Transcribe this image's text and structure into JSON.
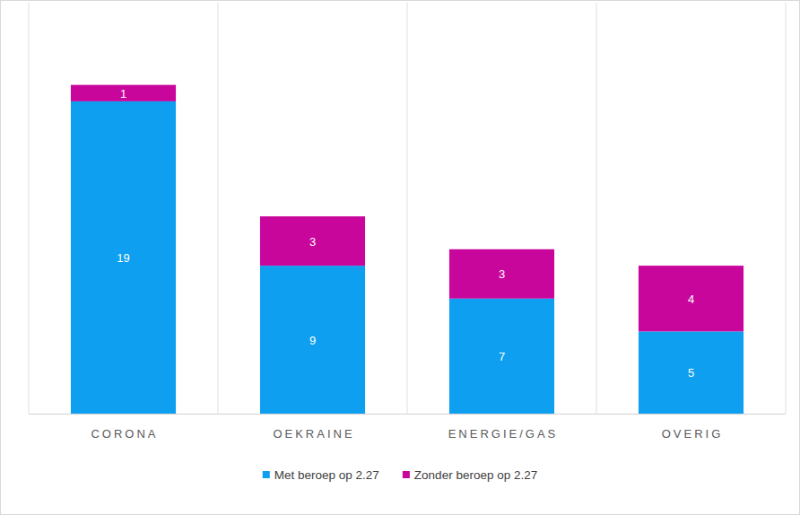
{
  "chart_data": {
    "type": "bar",
    "stacked": true,
    "categories": [
      "CORONA",
      "OEKRAINE",
      "ENERGIE/GAS",
      "OVERIG"
    ],
    "series": [
      {
        "name": "Met beroep op 2.27",
        "color": "#0e9ff0",
        "values": [
          19,
          9,
          7,
          5
        ]
      },
      {
        "name": "Zonder beroep op 2.27",
        "color": "#c9069b",
        "values": [
          1,
          3,
          3,
          4
        ]
      }
    ],
    "ylim": [
      0,
      25
    ],
    "grid": true,
    "legend": "bottom",
    "data_labels": true,
    "tick_labels": "x"
  }
}
